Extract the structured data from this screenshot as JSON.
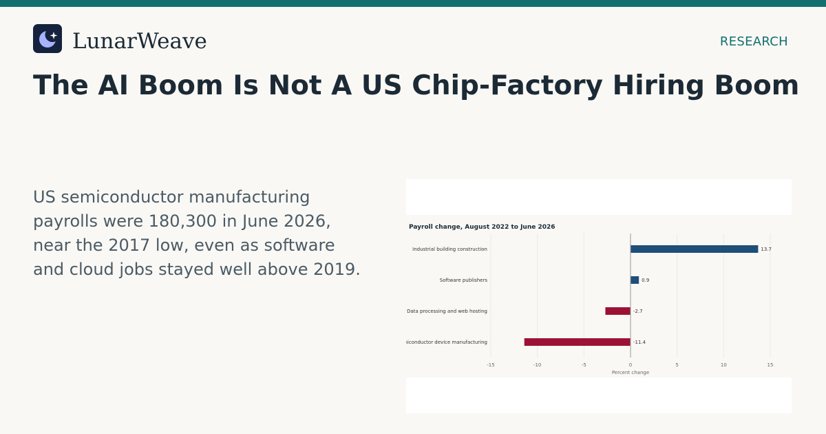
{
  "brand": {
    "name": "LunarWeave",
    "logo_icon": "moon-sparkle-icon",
    "logo_bg": "#16213e",
    "logo_moon": "#a7b3ff"
  },
  "section_label": "RESEARCH",
  "headline": "The AI Boom Is Not A US Chip-Factory Hiring Boom",
  "summary": "US semiconductor manufacturing payrolls were 180,300 in June 2026, near the 2017 low, even as software and cloud jobs stayed well above 2019.",
  "colors": {
    "accent": "#13706f",
    "positive_bar": "#1f4e79",
    "negative_bar": "#9b1235"
  },
  "chart_data": {
    "type": "bar",
    "orientation": "horizontal",
    "title": "Payroll change, August 2022 to June 2026",
    "xlabel": "Percent change",
    "ylabel": "",
    "xlim": [
      -15,
      15
    ],
    "xticks": [
      -15,
      -10,
      -5,
      0,
      5,
      10,
      15
    ],
    "grid": true,
    "categories": [
      "Industrial building construction",
      "Software publishers",
      "Data processing and web hosting",
      "Semiconductor device manufacturing"
    ],
    "values": [
      13.7,
      0.9,
      -2.7,
      -11.4
    ],
    "value_labels": [
      "13.7",
      "0.9",
      "-2.7",
      "-11.4"
    ]
  }
}
